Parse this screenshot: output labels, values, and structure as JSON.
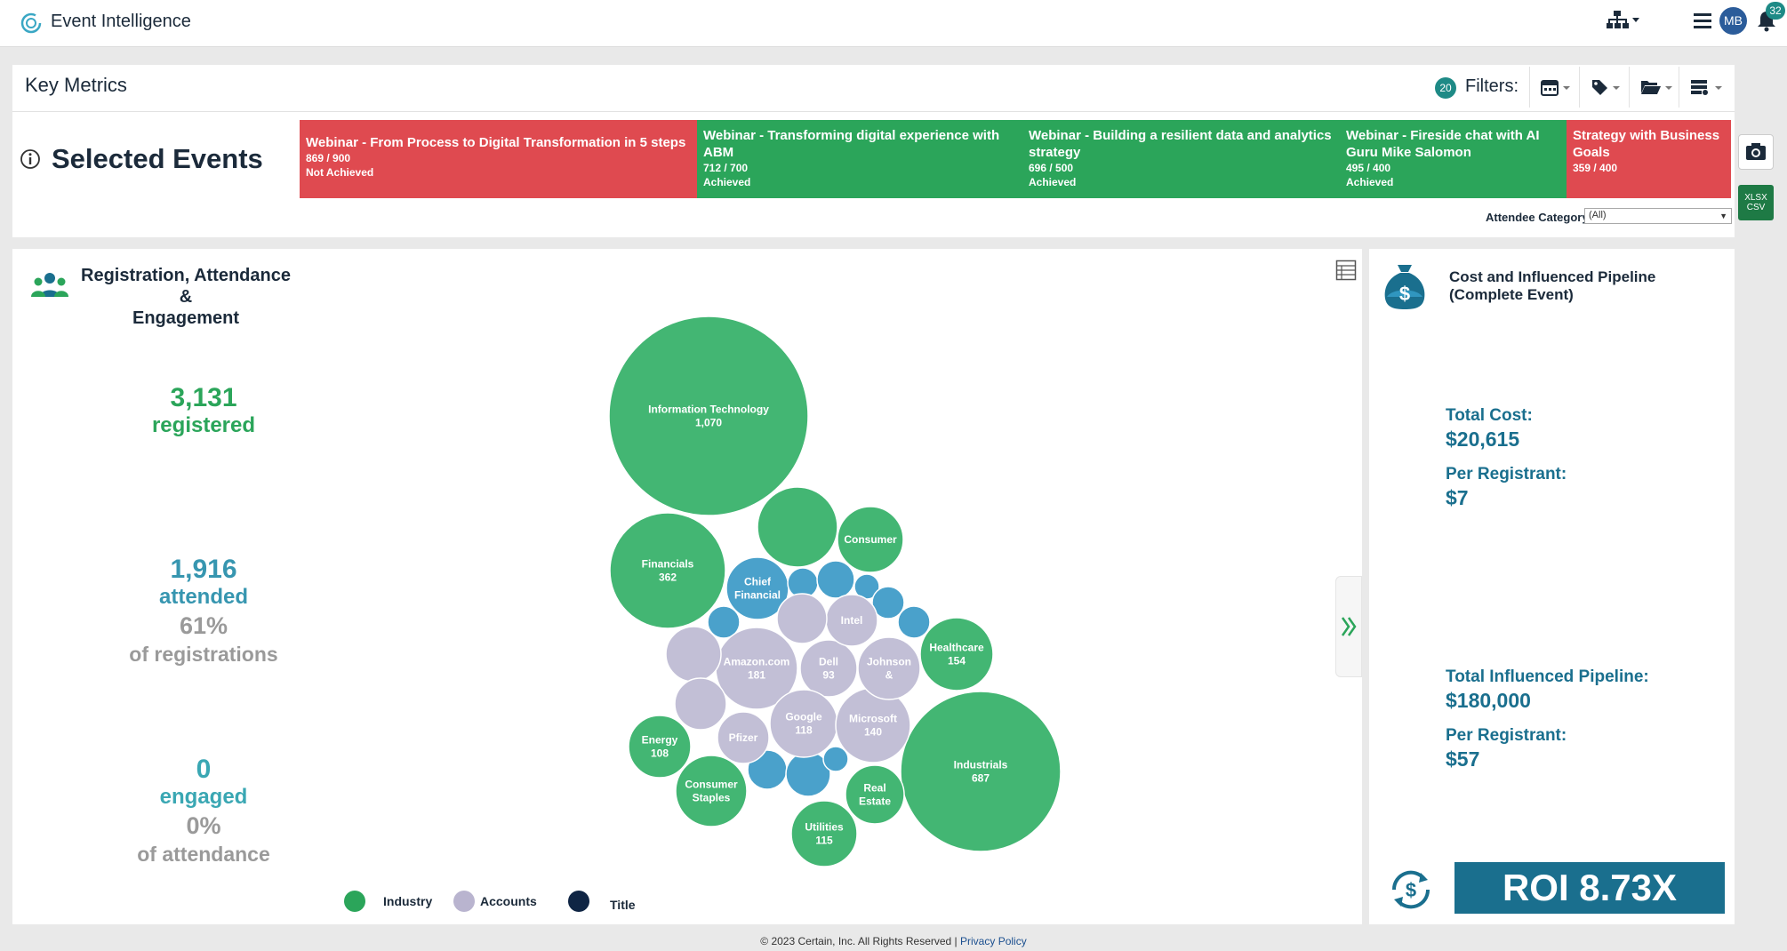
{
  "app": {
    "title": "Event Intelligence",
    "notification_count": "32",
    "avatar_initials": "MB"
  },
  "key_metrics": {
    "title": "Key Metrics",
    "filters_count": "20",
    "filters_label": "Filters:",
    "filter_icons": [
      "calendar-icon",
      "tag-icon",
      "folder-icon",
      "list-settings-icon"
    ]
  },
  "selected_events": {
    "title": "Selected Events",
    "events": [
      {
        "name": "Webinar - From Process to Digital Transformation in 5 steps",
        "nums": "869 / 900",
        "status": "Not Achieved",
        "color": "#df4a50"
      },
      {
        "name": "Webinar - Transforming digital experience with ABM",
        "nums": "712 / 700",
        "status": "Achieved",
        "color": "#2ba55a"
      },
      {
        "name": "Webinar - Building a resilient data and analytics strategy",
        "nums": "696 / 500",
        "status": "Achieved",
        "color": "#2ba55a"
      },
      {
        "name": "Webinar - Fireside chat with AI Guru Mike Salomon",
        "nums": "495 / 400",
        "status": "Achieved",
        "color": "#2ba55a"
      },
      {
        "name": "Strategy with Business Goals",
        "nums": "359 / 400",
        "status": "",
        "color": "#df4a50"
      }
    ],
    "attendee_category_label": "Attendee Category",
    "attendee_category_value": "(All)"
  },
  "export": {
    "xlsx": "XLSX",
    "csv": "CSV"
  },
  "registration": {
    "title_line1": "Registration, Attendance &",
    "title_line2": "Engagement",
    "registered_value": "3,131",
    "registered_label": "registered",
    "attended_value": "1,916",
    "attended_label": "attended",
    "attended_pct": "61%",
    "attended_sub": "of registrations",
    "engaged_value": "0",
    "engaged_label": "engaged",
    "engaged_pct": "0%",
    "engaged_sub": "of attendance"
  },
  "bubbles": [
    {
      "label": "Information Technology",
      "value": "1,070",
      "cat": "industry"
    },
    {
      "label": "Industrials",
      "value": "687",
      "cat": "industry"
    },
    {
      "label": "Financials",
      "value": "362",
      "cat": "industry"
    },
    {
      "label": "",
      "value": "",
      "cat": "industry"
    },
    {
      "label": "Consumer",
      "value": "",
      "cat": "industry"
    },
    {
      "label": "Healthcare",
      "value": "154",
      "cat": "industry"
    },
    {
      "label": "Energy",
      "value": "108",
      "cat": "industry"
    },
    {
      "label": "Consumer Staples",
      "value": "",
      "cat": "industry"
    },
    {
      "label": "Real Estate",
      "value": "",
      "cat": "industry"
    },
    {
      "label": "Utilities",
      "value": "115",
      "cat": "industry"
    },
    {
      "label": "Chief Financial",
      "value": "",
      "cat": "title"
    },
    {
      "label": "",
      "value": "",
      "cat": "title"
    },
    {
      "label": "",
      "value": "",
      "cat": "title"
    },
    {
      "label": "",
      "value": "",
      "cat": "title"
    },
    {
      "label": "",
      "value": "",
      "cat": "title"
    },
    {
      "label": "",
      "value": "",
      "cat": "title"
    },
    {
      "label": "",
      "value": "",
      "cat": "title"
    },
    {
      "label": "",
      "value": "",
      "cat": "title"
    },
    {
      "label": "",
      "value": "",
      "cat": "title"
    },
    {
      "label": "",
      "value": "",
      "cat": "title"
    },
    {
      "label": "Amazon.com",
      "value": "181",
      "cat": "account"
    },
    {
      "label": "Dell",
      "value": "93",
      "cat": "account"
    },
    {
      "label": "Google",
      "value": "118",
      "cat": "account"
    },
    {
      "label": "Microsoft",
      "value": "140",
      "cat": "account"
    },
    {
      "label": "Johnson &",
      "value": "",
      "cat": "account"
    },
    {
      "label": "Intel",
      "value": "",
      "cat": "account"
    },
    {
      "label": "Pfizer",
      "value": "",
      "cat": "account"
    },
    {
      "label": "",
      "value": "",
      "cat": "account"
    },
    {
      "label": "",
      "value": "",
      "cat": "account"
    },
    {
      "label": "",
      "value": "",
      "cat": "account"
    }
  ],
  "legend": [
    {
      "label": "Industry",
      "color": "#2ba55a"
    },
    {
      "label": "Accounts",
      "color": "#b9b4cf"
    },
    {
      "label": "Title",
      "color": "#0f2544"
    }
  ],
  "colors": {
    "industry": "#43b673",
    "title": "#4aa1cb",
    "account": "#c2bfd6",
    "accent": "#1a6f8e"
  },
  "cost": {
    "title_line1": "Cost and Influenced Pipeline",
    "title_line2": "(Complete Event)",
    "total_cost_label": "Total Cost:",
    "total_cost_value": "$20,615",
    "per_reg_label": "Per Registrant:",
    "per_reg_value": "$7",
    "pipeline_label": "Total Influenced Pipeline:",
    "pipeline_value": "$180,000",
    "pipeline_per_reg_label": "Per Registrant:",
    "pipeline_per_reg_value": "$57",
    "roi": "ROI 8.73X"
  },
  "footer": {
    "copyright": "© 2023 Certain, Inc. All Rights Reserved | ",
    "privacy": "Privacy Policy"
  }
}
